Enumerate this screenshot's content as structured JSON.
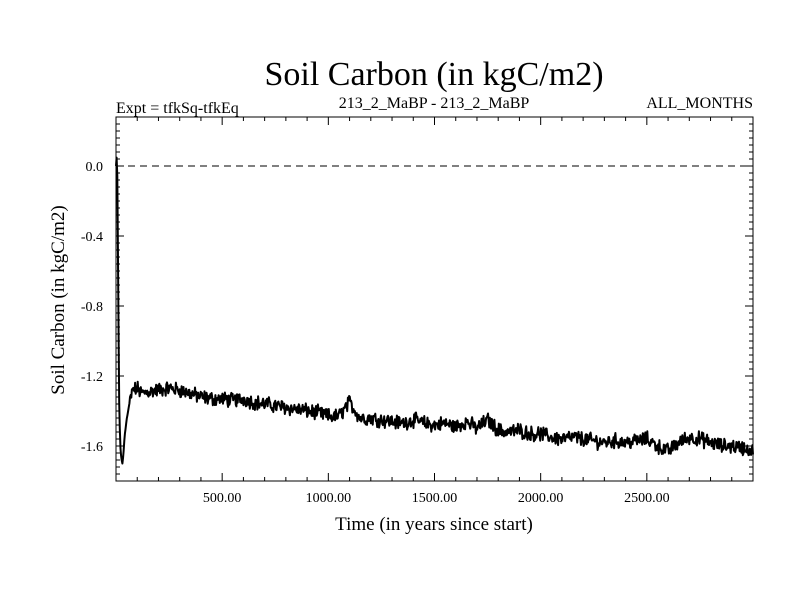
{
  "chart_data": {
    "type": "line",
    "title": "Soil Carbon (in kgC/m2)",
    "subtitle_left": "Expt = tfkSq-tfkEq",
    "subtitle_center": "213_2_MaBP - 213_2_MaBP",
    "subtitle_right": "ALL_MONTHS",
    "xlabel": "Time (in years since start)",
    "ylabel": "Soil Carbon (in kgC/m2)",
    "xlim": [
      0,
      3000
    ],
    "ylim": [
      -1.8,
      0.28
    ],
    "x_ticks": [
      500,
      1000,
      1500,
      2000,
      2500
    ],
    "x_tick_labels": [
      "500.00",
      "1000.00",
      "1500.00",
      "2000.00",
      "2500.00"
    ],
    "y_ticks": [
      0.0,
      -0.4,
      -0.8,
      -1.2,
      -1.6
    ],
    "y_tick_labels": [
      "0.0",
      "-0.4",
      "-0.8",
      "-1.2",
      "-1.6"
    ],
    "reference_line": {
      "y": 0.0,
      "style": "dashed"
    },
    "series": [
      {
        "name": "Soil Carbon",
        "color": "#000000",
        "x": [
          0,
          5,
          10,
          15,
          20,
          25,
          30,
          35,
          40,
          50,
          60,
          70,
          80,
          100,
          120,
          150,
          200,
          250,
          300,
          350,
          400,
          450,
          500,
          550,
          600,
          650,
          700,
          750,
          800,
          850,
          900,
          950,
          1000,
          1050,
          1100,
          1150,
          1200,
          1250,
          1300,
          1350,
          1400,
          1450,
          1500,
          1550,
          1600,
          1650,
          1700,
          1750,
          1800,
          1850,
          1900,
          1950,
          2000,
          2050,
          2100,
          2150,
          2200,
          2250,
          2300,
          2350,
          2400,
          2450,
          2500,
          2550,
          2600,
          2650,
          2700,
          2750,
          2800,
          2850,
          2900,
          2950,
          3000
        ],
        "values": [
          0.0,
          0.08,
          -0.6,
          -1.35,
          -1.6,
          -1.67,
          -1.7,
          -1.65,
          -1.55,
          -1.45,
          -1.38,
          -1.32,
          -1.28,
          -1.27,
          -1.3,
          -1.29,
          -1.28,
          -1.27,
          -1.28,
          -1.3,
          -1.32,
          -1.33,
          -1.33,
          -1.34,
          -1.33,
          -1.35,
          -1.36,
          -1.37,
          -1.38,
          -1.39,
          -1.4,
          -1.41,
          -1.43,
          -1.43,
          -1.35,
          -1.44,
          -1.44,
          -1.45,
          -1.46,
          -1.47,
          -1.45,
          -1.47,
          -1.48,
          -1.47,
          -1.49,
          -1.46,
          -1.5,
          -1.45,
          -1.51,
          -1.52,
          -1.51,
          -1.53,
          -1.53,
          -1.55,
          -1.56,
          -1.55,
          -1.56,
          -1.57,
          -1.58,
          -1.57,
          -1.58,
          -1.57,
          -1.56,
          -1.6,
          -1.63,
          -1.58,
          -1.55,
          -1.56,
          -1.58,
          -1.6,
          -1.6,
          -1.61,
          -1.63
        ]
      }
    ]
  }
}
